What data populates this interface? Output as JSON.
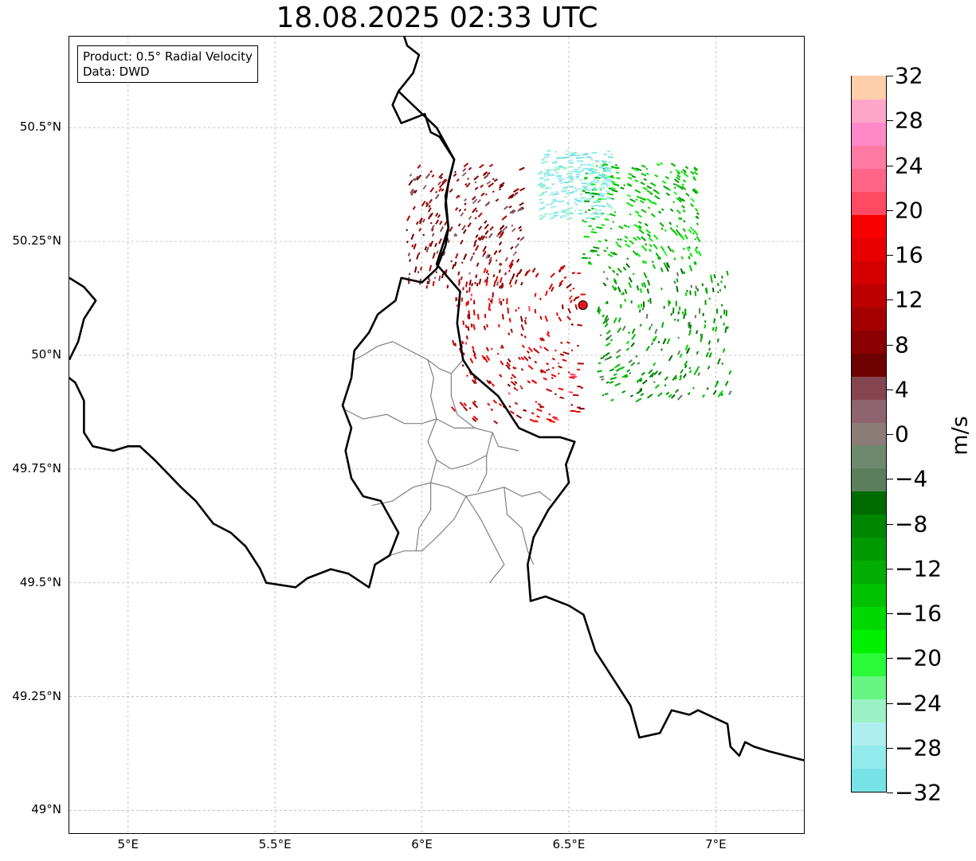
{
  "title": "18.08.2025 02:33 UTC",
  "info_box": {
    "product": "Product: 0.5° Radial Velocity",
    "data_source": "Data: DWD"
  },
  "map": {
    "projection": "PlateCarree",
    "lon_range": [
      4.8,
      7.3
    ],
    "lat_range": [
      48.95,
      50.7
    ],
    "grid": true,
    "lat_ticks": [
      {
        "value": 50.5,
        "label": "50.5°N"
      },
      {
        "value": 50.25,
        "label": "50.25°N"
      },
      {
        "value": 50.0,
        "label": "50°N"
      },
      {
        "value": 49.75,
        "label": "49.75°N"
      },
      {
        "value": 49.5,
        "label": "49.5°N"
      },
      {
        "value": 49.25,
        "label": "49.25°N"
      },
      {
        "value": 49.0,
        "label": "49°N"
      }
    ],
    "lon_ticks": [
      {
        "value": 5.0,
        "label": "5°E"
      },
      {
        "value": 5.5,
        "label": "5.5°E"
      },
      {
        "value": 6.0,
        "label": "6°E"
      },
      {
        "value": 6.5,
        "label": "6.5°E"
      },
      {
        "value": 7.0,
        "label": "7°E"
      }
    ],
    "radar_site": {
      "lon": 6.548,
      "lat": 50.11,
      "marker_color": "#e8141b"
    },
    "country_border": [
      [
        5.93,
        50.72
      ],
      [
        5.95,
        50.68
      ],
      [
        5.99,
        50.66
      ],
      [
        5.97,
        50.62
      ],
      [
        5.92,
        50.58
      ],
      [
        5.9,
        50.55
      ],
      [
        5.93,
        50.51
      ],
      [
        6.01,
        50.53
      ],
      [
        6.03,
        50.49
      ],
      [
        6.06,
        50.48
      ],
      [
        6.11,
        50.43
      ],
      [
        6.09,
        50.38
      ],
      [
        6.08,
        50.33
      ],
      [
        6.09,
        50.28
      ],
      [
        6.08,
        50.24
      ],
      [
        6.05,
        50.19
      ],
      [
        6.0,
        50.16
      ],
      [
        5.93,
        50.17
      ],
      [
        5.91,
        50.12
      ],
      [
        5.85,
        50.09
      ],
      [
        5.82,
        50.05
      ],
      [
        5.77,
        50.01
      ],
      [
        5.76,
        49.95
      ],
      [
        5.73,
        49.89
      ],
      [
        5.76,
        49.84
      ],
      [
        5.74,
        49.79
      ],
      [
        5.76,
        49.73
      ],
      [
        5.8,
        49.69
      ],
      [
        5.86,
        49.68
      ],
      [
        5.92,
        49.61
      ],
      [
        5.89,
        49.56
      ],
      [
        5.84,
        49.54
      ],
      [
        5.82,
        49.49
      ],
      [
        5.75,
        49.52
      ],
      [
        5.69,
        49.53
      ],
      [
        5.61,
        49.51
      ],
      [
        5.57,
        49.49
      ],
      [
        5.47,
        49.5
      ],
      [
        5.45,
        49.53
      ],
      [
        5.4,
        49.58
      ],
      [
        5.35,
        49.61
      ],
      [
        5.29,
        49.63
      ],
      [
        5.23,
        49.68
      ],
      [
        5.18,
        49.71
      ],
      [
        5.09,
        49.77
      ],
      [
        5.04,
        49.8
      ],
      [
        5.0,
        49.8
      ],
      [
        4.95,
        49.79
      ],
      [
        4.88,
        49.8
      ],
      [
        4.85,
        49.83
      ],
      [
        4.85,
        49.9
      ],
      [
        4.82,
        49.94
      ],
      [
        4.78,
        49.96
      ]
    ],
    "belgium_fragment": [
      [
        4.8,
        50.17
      ],
      [
        4.85,
        50.15
      ],
      [
        4.89,
        50.12
      ],
      [
        4.85,
        50.08
      ],
      [
        4.83,
        50.03
      ],
      [
        4.8,
        49.99
      ]
    ],
    "germany_border": [
      [
        5.92,
        50.58
      ],
      [
        6.05,
        50.5
      ],
      [
        6.11,
        50.43
      ],
      [
        6.08,
        50.35
      ],
      [
        6.09,
        50.28
      ],
      [
        6.05,
        50.2
      ],
      [
        6.13,
        50.14
      ],
      [
        6.12,
        50.07
      ],
      [
        6.14,
        49.99
      ],
      [
        6.17,
        49.96
      ],
      [
        6.26,
        49.91
      ],
      [
        6.33,
        49.84
      ],
      [
        6.4,
        49.82
      ],
      [
        6.47,
        49.82
      ],
      [
        6.52,
        49.81
      ],
      [
        6.49,
        49.76
      ],
      [
        6.5,
        49.72
      ],
      [
        6.43,
        49.66
      ],
      [
        6.38,
        49.6
      ],
      [
        6.36,
        49.54
      ],
      [
        6.37,
        49.46
      ],
      [
        6.42,
        49.47
      ],
      [
        6.5,
        49.45
      ],
      [
        6.55,
        49.43
      ],
      [
        6.57,
        49.39
      ],
      [
        6.59,
        49.35
      ],
      [
        6.66,
        49.28
      ],
      [
        6.71,
        49.23
      ],
      [
        6.74,
        49.16
      ],
      [
        6.81,
        49.17
      ],
      [
        6.85,
        49.22
      ],
      [
        6.91,
        49.21
      ],
      [
        6.94,
        49.22
      ],
      [
        7.04,
        49.19
      ],
      [
        7.05,
        49.14
      ],
      [
        7.08,
        49.12
      ],
      [
        7.1,
        49.15
      ],
      [
        7.13,
        49.14
      ],
      [
        7.18,
        49.13
      ],
      [
        7.24,
        49.12
      ],
      [
        7.3,
        49.11
      ]
    ],
    "regional_boundaries": [
      [
        [
          5.77,
          49.99
        ],
        [
          5.8,
          50.0
        ],
        [
          5.85,
          50.02
        ],
        [
          5.9,
          50.03
        ],
        [
          5.96,
          50.01
        ],
        [
          6.02,
          49.99
        ],
        [
          6.06,
          49.97
        ],
        [
          6.1,
          49.96
        ],
        [
          6.14,
          49.99
        ]
      ],
      [
        [
          6.02,
          49.99
        ],
        [
          6.04,
          49.95
        ],
        [
          6.03,
          49.91
        ],
        [
          6.05,
          49.86
        ],
        [
          6.11,
          49.84
        ],
        [
          6.18,
          49.84
        ],
        [
          6.24,
          49.83
        ]
      ],
      [
        [
          6.1,
          49.96
        ],
        [
          6.1,
          49.91
        ],
        [
          6.12,
          49.87
        ],
        [
          6.18,
          49.84
        ]
      ],
      [
        [
          5.74,
          49.88
        ],
        [
          5.8,
          49.86
        ],
        [
          5.88,
          49.87
        ],
        [
          5.94,
          49.85
        ],
        [
          6.0,
          49.85
        ],
        [
          6.05,
          49.86
        ]
      ],
      [
        [
          6.05,
          49.86
        ],
        [
          6.02,
          49.81
        ],
        [
          6.05,
          49.77
        ],
        [
          6.1,
          49.75
        ],
        [
          6.16,
          49.76
        ],
        [
          6.22,
          49.78
        ],
        [
          6.24,
          49.83
        ],
        [
          6.26,
          49.8
        ],
        [
          6.33,
          49.79
        ]
      ],
      [
        [
          5.83,
          49.67
        ],
        [
          5.9,
          49.68
        ],
        [
          5.97,
          49.71
        ],
        [
          6.03,
          49.72
        ],
        [
          6.09,
          49.71
        ],
        [
          6.15,
          49.69
        ],
        [
          6.22,
          49.7
        ],
        [
          6.28,
          49.71
        ],
        [
          6.34,
          49.69
        ],
        [
          6.4,
          49.7
        ],
        [
          6.44,
          49.68
        ]
      ],
      [
        [
          6.05,
          49.77
        ],
        [
          6.03,
          49.72
        ],
        [
          6.03,
          49.66
        ],
        [
          5.99,
          49.62
        ],
        [
          5.98,
          49.57
        ]
      ],
      [
        [
          6.22,
          49.78
        ],
        [
          6.22,
          49.74
        ],
        [
          6.19,
          49.7
        ]
      ],
      [
        [
          6.15,
          49.69
        ],
        [
          6.11,
          49.64
        ],
        [
          6.05,
          49.6
        ],
        [
          6.0,
          49.57
        ],
        [
          5.94,
          49.57
        ],
        [
          5.89,
          49.56
        ]
      ],
      [
        [
          6.15,
          49.69
        ],
        [
          6.2,
          49.64
        ],
        [
          6.24,
          49.59
        ],
        [
          6.28,
          49.54
        ],
        [
          6.23,
          49.5
        ]
      ],
      [
        [
          6.28,
          49.71
        ],
        [
          6.29,
          49.65
        ],
        [
          6.34,
          49.62
        ],
        [
          6.36,
          49.57
        ],
        [
          6.38,
          49.54
        ]
      ]
    ]
  },
  "colorbar": {
    "label": "m/s",
    "min": -32,
    "max": 32,
    "ticks": [
      "−32",
      "−28",
      "−24",
      "−20",
      "−16",
      "−12",
      "−8",
      "−4",
      "0",
      "4",
      "8",
      "12",
      "16",
      "20",
      "24",
      "28",
      "32"
    ],
    "colors_bottom_to_top": [
      "#78e3e6",
      "#92eaec",
      "#aeeef0",
      "#9cf2c4",
      "#67f584",
      "#2afa3a",
      "#00f000",
      "#00d900",
      "#00c200",
      "#00ad00",
      "#009a00",
      "#008600",
      "#006b00",
      "#5c7e5c",
      "#6e8a6e",
      "#8c7c78",
      "#8d6470",
      "#844550",
      "#6d0000",
      "#8b0000",
      "#a50000",
      "#bd0000",
      "#d40000",
      "#e80000",
      "#f80000",
      "#ff4a64",
      "#ff6586",
      "#ff7aa2",
      "#ff88c8",
      "#ffa6c8",
      "#ffcfac"
    ]
  },
  "radar_echoes": {
    "quantity": "radial velocity (m/s)",
    "regions": [
      {
        "lon_range": [
          5.95,
          6.35
        ],
        "lat_range": [
          50.15,
          50.42
        ],
        "velocity_range": [
          2,
          12
        ]
      },
      {
        "lon_range": [
          6.1,
          6.55
        ],
        "lat_range": [
          49.85,
          50.2
        ],
        "velocity_range": [
          8,
          20
        ]
      },
      {
        "lon_range": [
          6.55,
          6.95
        ],
        "lat_range": [
          50.2,
          50.42
        ],
        "velocity_range": [
          -20,
          -10
        ]
      },
      {
        "lon_range": [
          6.6,
          7.05
        ],
        "lat_range": [
          49.9,
          50.2
        ],
        "velocity_range": [
          -16,
          -4
        ]
      },
      {
        "lon_range": [
          6.4,
          6.65
        ],
        "lat_range": [
          50.3,
          50.45
        ],
        "velocity_range": [
          -32,
          -24
        ]
      }
    ]
  }
}
